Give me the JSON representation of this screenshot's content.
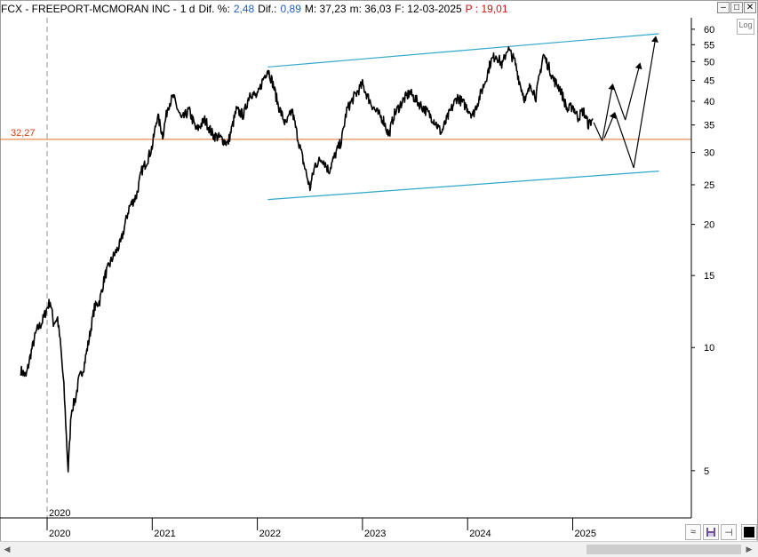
{
  "header": {
    "symbol_name": "FCX - FREEPORT-MCMORAN INC -",
    "timeframe": "1 d",
    "dif_pct_label": "Dif. %:",
    "dif_pct_value": "2,48",
    "dif_label": "Dif.:",
    "dif_value": "0,89",
    "m1_label": "M: 37,23",
    "m2_label": "m: 36,03",
    "date_label": "F: 12-03-2025",
    "p_label": "P : 19,01"
  },
  "controls": {
    "log_label": "Log",
    "minimize": "‒",
    "restore": "□",
    "close": "✕",
    "scroll_left": "◀",
    "scroll_right": "▶"
  },
  "colors": {
    "price": "#000000",
    "channel": "#30a8c8",
    "support": "#e07020",
    "support_label": "#d04010",
    "projection": "#000000"
  },
  "chart_data": {
    "type": "line",
    "scale": "log",
    "ylim": [
      4.3,
      64
    ],
    "y_ticks": [
      5,
      10,
      15,
      20,
      25,
      30,
      35,
      40,
      45,
      50,
      55,
      60
    ],
    "x_ticks": [
      "2020",
      "2021",
      "2022",
      "2023",
      "2024",
      "2025"
    ],
    "cursor_label": "2020",
    "grid": "off",
    "support_level": 32.27,
    "support_label": "32,27",
    "series": [
      {
        "values": [
          [
            2019.75,
            8.8
          ],
          [
            2019.8,
            8.5
          ],
          [
            2019.85,
            9.8
          ],
          [
            2019.9,
            11.0
          ],
          [
            2019.95,
            11.5
          ],
          [
            2020.0,
            12.5
          ],
          [
            2020.03,
            13.0
          ],
          [
            2020.06,
            11.5
          ],
          [
            2020.1,
            11.8
          ],
          [
            2020.13,
            10.0
          ],
          [
            2020.16,
            8.0
          ],
          [
            2020.2,
            5.0
          ],
          [
            2020.23,
            7.0
          ],
          [
            2020.27,
            7.5
          ],
          [
            2020.3,
            8.3
          ],
          [
            2020.35,
            9.0
          ],
          [
            2020.4,
            10.5
          ],
          [
            2020.45,
            12.5
          ],
          [
            2020.5,
            13.0
          ],
          [
            2020.55,
            15.0
          ],
          [
            2020.62,
            16.5
          ],
          [
            2020.7,
            18.0
          ],
          [
            2020.78,
            22.0
          ],
          [
            2020.85,
            23.5
          ],
          [
            2020.9,
            27.0
          ],
          [
            2020.96,
            29.0
          ],
          [
            2021.0,
            31.0
          ],
          [
            2021.05,
            37.0
          ],
          [
            2021.1,
            33.0
          ],
          [
            2021.15,
            39.0
          ],
          [
            2021.2,
            41.0
          ],
          [
            2021.28,
            36.0
          ],
          [
            2021.35,
            38.0
          ],
          [
            2021.42,
            34.0
          ],
          [
            2021.5,
            36.0
          ],
          [
            2021.58,
            33.0
          ],
          [
            2021.65,
            32.5
          ],
          [
            2021.72,
            31.5
          ],
          [
            2021.8,
            38.0
          ],
          [
            2021.87,
            37.0
          ],
          [
            2021.93,
            42.0
          ],
          [
            2022.0,
            41.0
          ],
          [
            2022.05,
            45.0
          ],
          [
            2022.1,
            48.0
          ],
          [
            2022.15,
            44.0
          ],
          [
            2022.2,
            39.0
          ],
          [
            2022.27,
            35.0
          ],
          [
            2022.33,
            38.0
          ],
          [
            2022.38,
            33.0
          ],
          [
            2022.43,
            29.0
          ],
          [
            2022.5,
            24.5
          ],
          [
            2022.55,
            28.0
          ],
          [
            2022.62,
            29.0
          ],
          [
            2022.68,
            27.0
          ],
          [
            2022.75,
            30.0
          ],
          [
            2022.8,
            32.0
          ],
          [
            2022.85,
            38.0
          ],
          [
            2022.92,
            41.0
          ],
          [
            2023.0,
            44.0
          ],
          [
            2023.05,
            41.0
          ],
          [
            2023.12,
            38.0
          ],
          [
            2023.2,
            36.0
          ],
          [
            2023.25,
            33.0
          ],
          [
            2023.3,
            37.0
          ],
          [
            2023.38,
            40.0
          ],
          [
            2023.45,
            42.0
          ],
          [
            2023.52,
            40.0
          ],
          [
            2023.6,
            38.0
          ],
          [
            2023.68,
            36.0
          ],
          [
            2023.75,
            33.5
          ],
          [
            2023.82,
            37.0
          ],
          [
            2023.9,
            41.0
          ],
          [
            2024.0,
            38.5
          ],
          [
            2024.05,
            37.0
          ],
          [
            2024.1,
            40.0
          ],
          [
            2024.17,
            45.0
          ],
          [
            2024.22,
            50.0
          ],
          [
            2024.27,
            52.0
          ],
          [
            2024.33,
            49.0
          ],
          [
            2024.38,
            54.0
          ],
          [
            2024.45,
            50.0
          ],
          [
            2024.5,
            44.0
          ],
          [
            2024.55,
            40.0
          ],
          [
            2024.6,
            44.0
          ],
          [
            2024.65,
            41.0
          ],
          [
            2024.72,
            52.0
          ],
          [
            2024.78,
            48.0
          ],
          [
            2024.82,
            45.0
          ],
          [
            2024.88,
            43.0
          ],
          [
            2024.95,
            38.0
          ],
          [
            2025.0,
            39.0
          ],
          [
            2025.05,
            36.5
          ],
          [
            2025.1,
            38.0
          ],
          [
            2025.15,
            35.0
          ],
          [
            2025.19,
            36.3
          ]
        ]
      }
    ],
    "channel_upper": [
      [
        2022.1,
        48.5
      ],
      [
        2025.82,
        58.5
      ]
    ],
    "channel_lower": [
      [
        2022.1,
        23.0
      ],
      [
        2025.82,
        27.0
      ]
    ],
    "projection_paths": [
      [
        [
          2025.2,
          35.5
        ],
        [
          2025.28,
          32.0
        ],
        [
          2025.38,
          44.0
        ],
        [
          2025.5,
          36.0
        ],
        [
          2025.64,
          49.5
        ]
      ],
      [
        [
          2025.3,
          32.5
        ],
        [
          2025.4,
          37.5
        ],
        [
          2025.58,
          27.5
        ],
        [
          2025.79,
          57.5
        ]
      ]
    ]
  }
}
